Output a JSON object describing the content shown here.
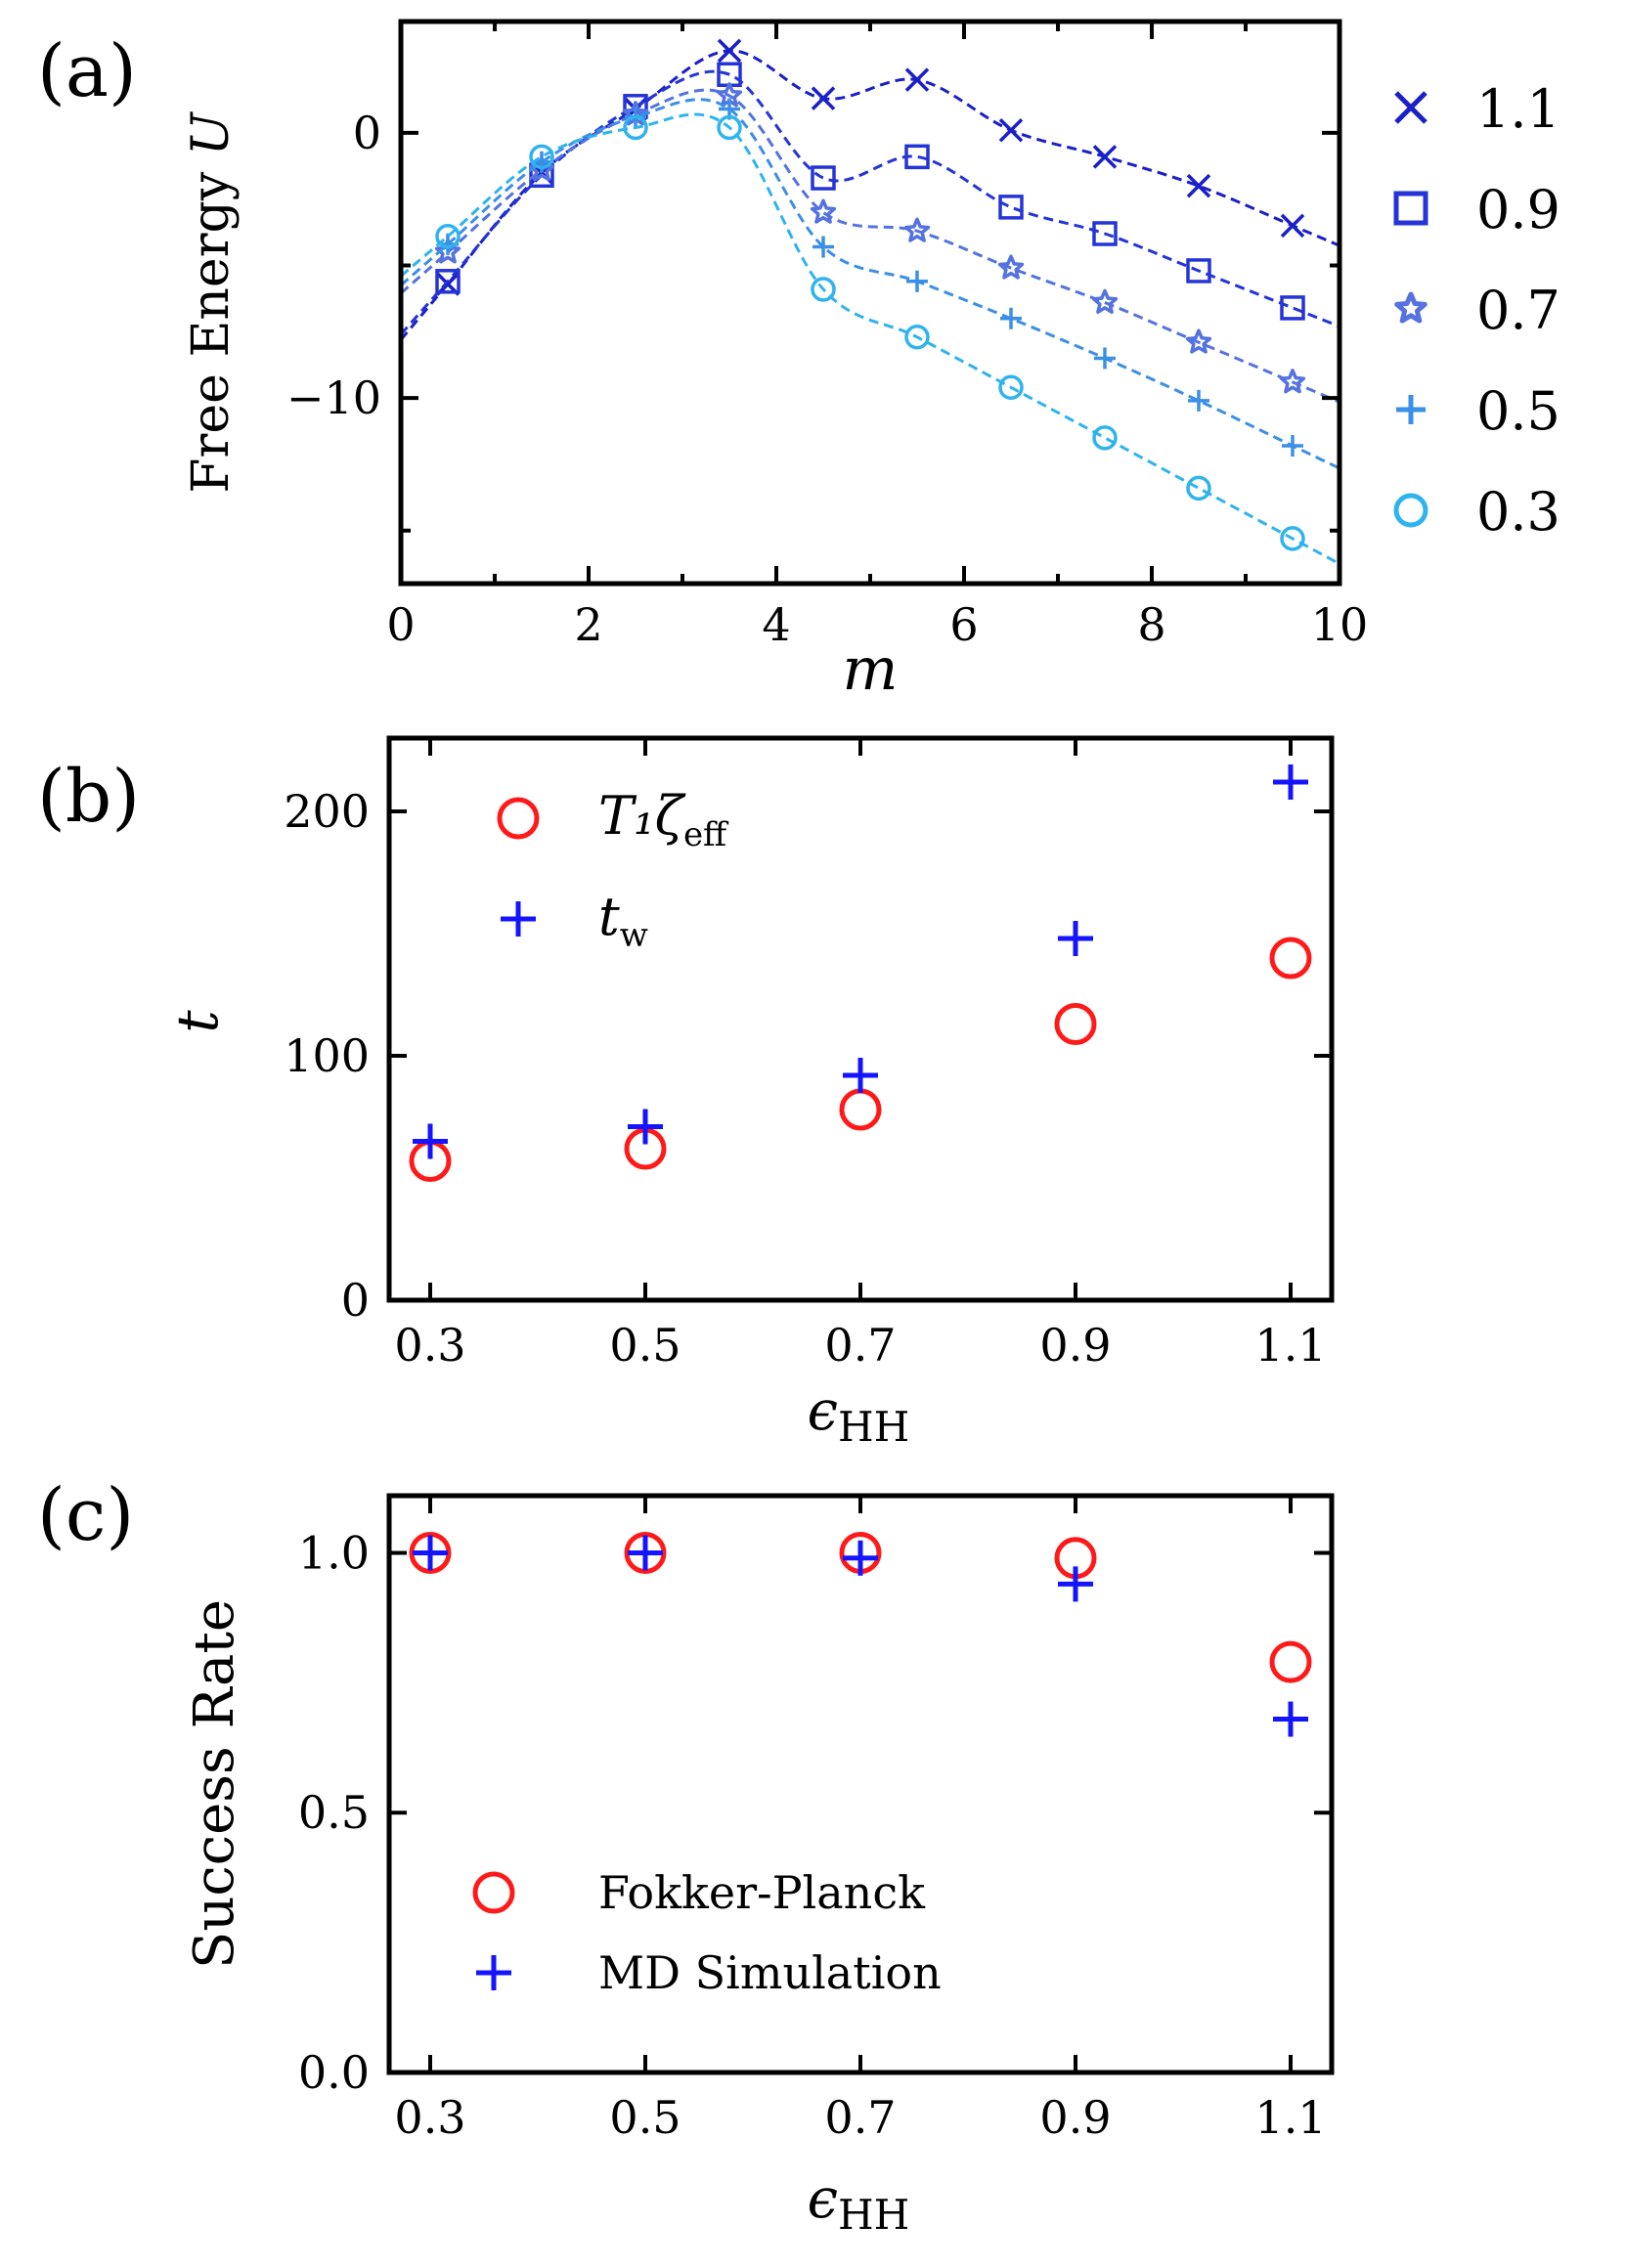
{
  "chart_data": [
    {
      "panel": "(a)",
      "type": "line",
      "title": "",
      "xlabel": "m",
      "ylabel": "Free Energy U",
      "xlim": [
        0,
        10
      ],
      "ylim": [
        -17,
        4.2
      ],
      "xticks": [
        0,
        2,
        4,
        6,
        8,
        10
      ],
      "yticks": [
        0,
        -10
      ],
      "ytick_labels": [
        "0",
        "−10"
      ],
      "minor_xticks": [
        1,
        3,
        5,
        7,
        9
      ],
      "minor_yticks": [
        -5,
        -15
      ],
      "legend_title": "",
      "series": [
        {
          "name": "1.1",
          "marker": "x",
          "color": "#1a1fc8",
          "x": [
            0.5,
            1.5,
            2.5,
            3.5,
            4.5,
            5.5,
            6.5,
            7.5,
            8.5,
            9.5
          ],
          "values": [
            -5.7,
            -1.5,
            0.9,
            3.1,
            1.3,
            2.0,
            0.1,
            -0.9,
            -2.0,
            -3.5
          ]
        },
        {
          "name": "0.9",
          "marker": "square",
          "color": "#2434d6",
          "x": [
            0.5,
            1.5,
            2.5,
            3.5,
            4.5,
            5.5,
            6.5,
            7.5,
            8.5,
            9.5
          ],
          "values": [
            -5.6,
            -1.6,
            1.0,
            2.2,
            -1.7,
            -0.9,
            -2.8,
            -3.8,
            -5.2,
            -6.6
          ]
        },
        {
          "name": "0.7",
          "marker": "star",
          "color": "#5472e0",
          "x": [
            0.5,
            1.5,
            2.5,
            3.5,
            4.5,
            5.5,
            6.5,
            7.5,
            8.5,
            9.5
          ],
          "values": [
            -4.5,
            -1.4,
            0.7,
            1.4,
            -3.0,
            -3.7,
            -5.1,
            -6.4,
            -7.9,
            -9.4
          ]
        },
        {
          "name": "0.5",
          "marker": "plus",
          "color": "#3a8fe6",
          "x": [
            0.5,
            1.5,
            2.5,
            3.5,
            4.5,
            5.5,
            6.5,
            7.5,
            8.5,
            9.5
          ],
          "values": [
            -4.2,
            -1.1,
            0.6,
            0.9,
            -4.3,
            -5.6,
            -7.0,
            -8.5,
            -10.1,
            -11.8
          ]
        },
        {
          "name": "0.3",
          "marker": "circle",
          "color": "#2fb3ef",
          "x": [
            0.5,
            1.5,
            2.5,
            3.5,
            4.5,
            5.5,
            6.5,
            7.5,
            8.5,
            9.5
          ],
          "values": [
            -3.9,
            -0.9,
            0.2,
            0.2,
            -5.9,
            -7.7,
            -9.6,
            -11.5,
            -13.4,
            -15.3
          ]
        }
      ]
    },
    {
      "panel": "(b)",
      "type": "scatter",
      "title": "",
      "xlabel": "ϵ",
      "xlabel_sub": "HH",
      "ylabel": "t",
      "categories": [
        "0.3",
        "0.5",
        "0.7",
        "0.9",
        "1.1"
      ],
      "ylim": [
        0,
        230
      ],
      "yticks": [
        0,
        100,
        200
      ],
      "ytick_labels": [
        "0",
        "100",
        "200"
      ],
      "legend_position": "upper-left",
      "series": [
        {
          "name": "T₁ζ",
          "name_sub": "eff",
          "marker": "circle",
          "color": "#ff1a1a",
          "values": [
            57,
            62,
            78,
            113,
            140
          ]
        },
        {
          "name": "t",
          "name_sub": "w",
          "marker": "plus",
          "color": "#1414ff",
          "values": [
            65,
            71,
            92,
            148,
            212
          ]
        }
      ]
    },
    {
      "panel": "(c)",
      "type": "scatter",
      "title": "",
      "xlabel": "ϵ",
      "xlabel_sub": "HH",
      "ylabel": "Success Rate",
      "categories": [
        "0.3",
        "0.5",
        "0.7",
        "0.9",
        "1.1"
      ],
      "ylim": [
        0,
        1.11
      ],
      "yticks": [
        0,
        0.5,
        1.0
      ],
      "ytick_labels": [
        "0.0",
        "0.5",
        "1.0"
      ],
      "legend_position": "lower-left",
      "series": [
        {
          "name": "Fokker-Planck",
          "marker": "circle",
          "color": "#ff1a1a",
          "values": [
            1.0,
            1.0,
            1.0,
            0.99,
            0.79
          ]
        },
        {
          "name": "MD Simulation",
          "marker": "plus",
          "color": "#1414ff",
          "values": [
            1.0,
            1.0,
            0.99,
            0.94,
            0.68
          ]
        }
      ]
    }
  ]
}
